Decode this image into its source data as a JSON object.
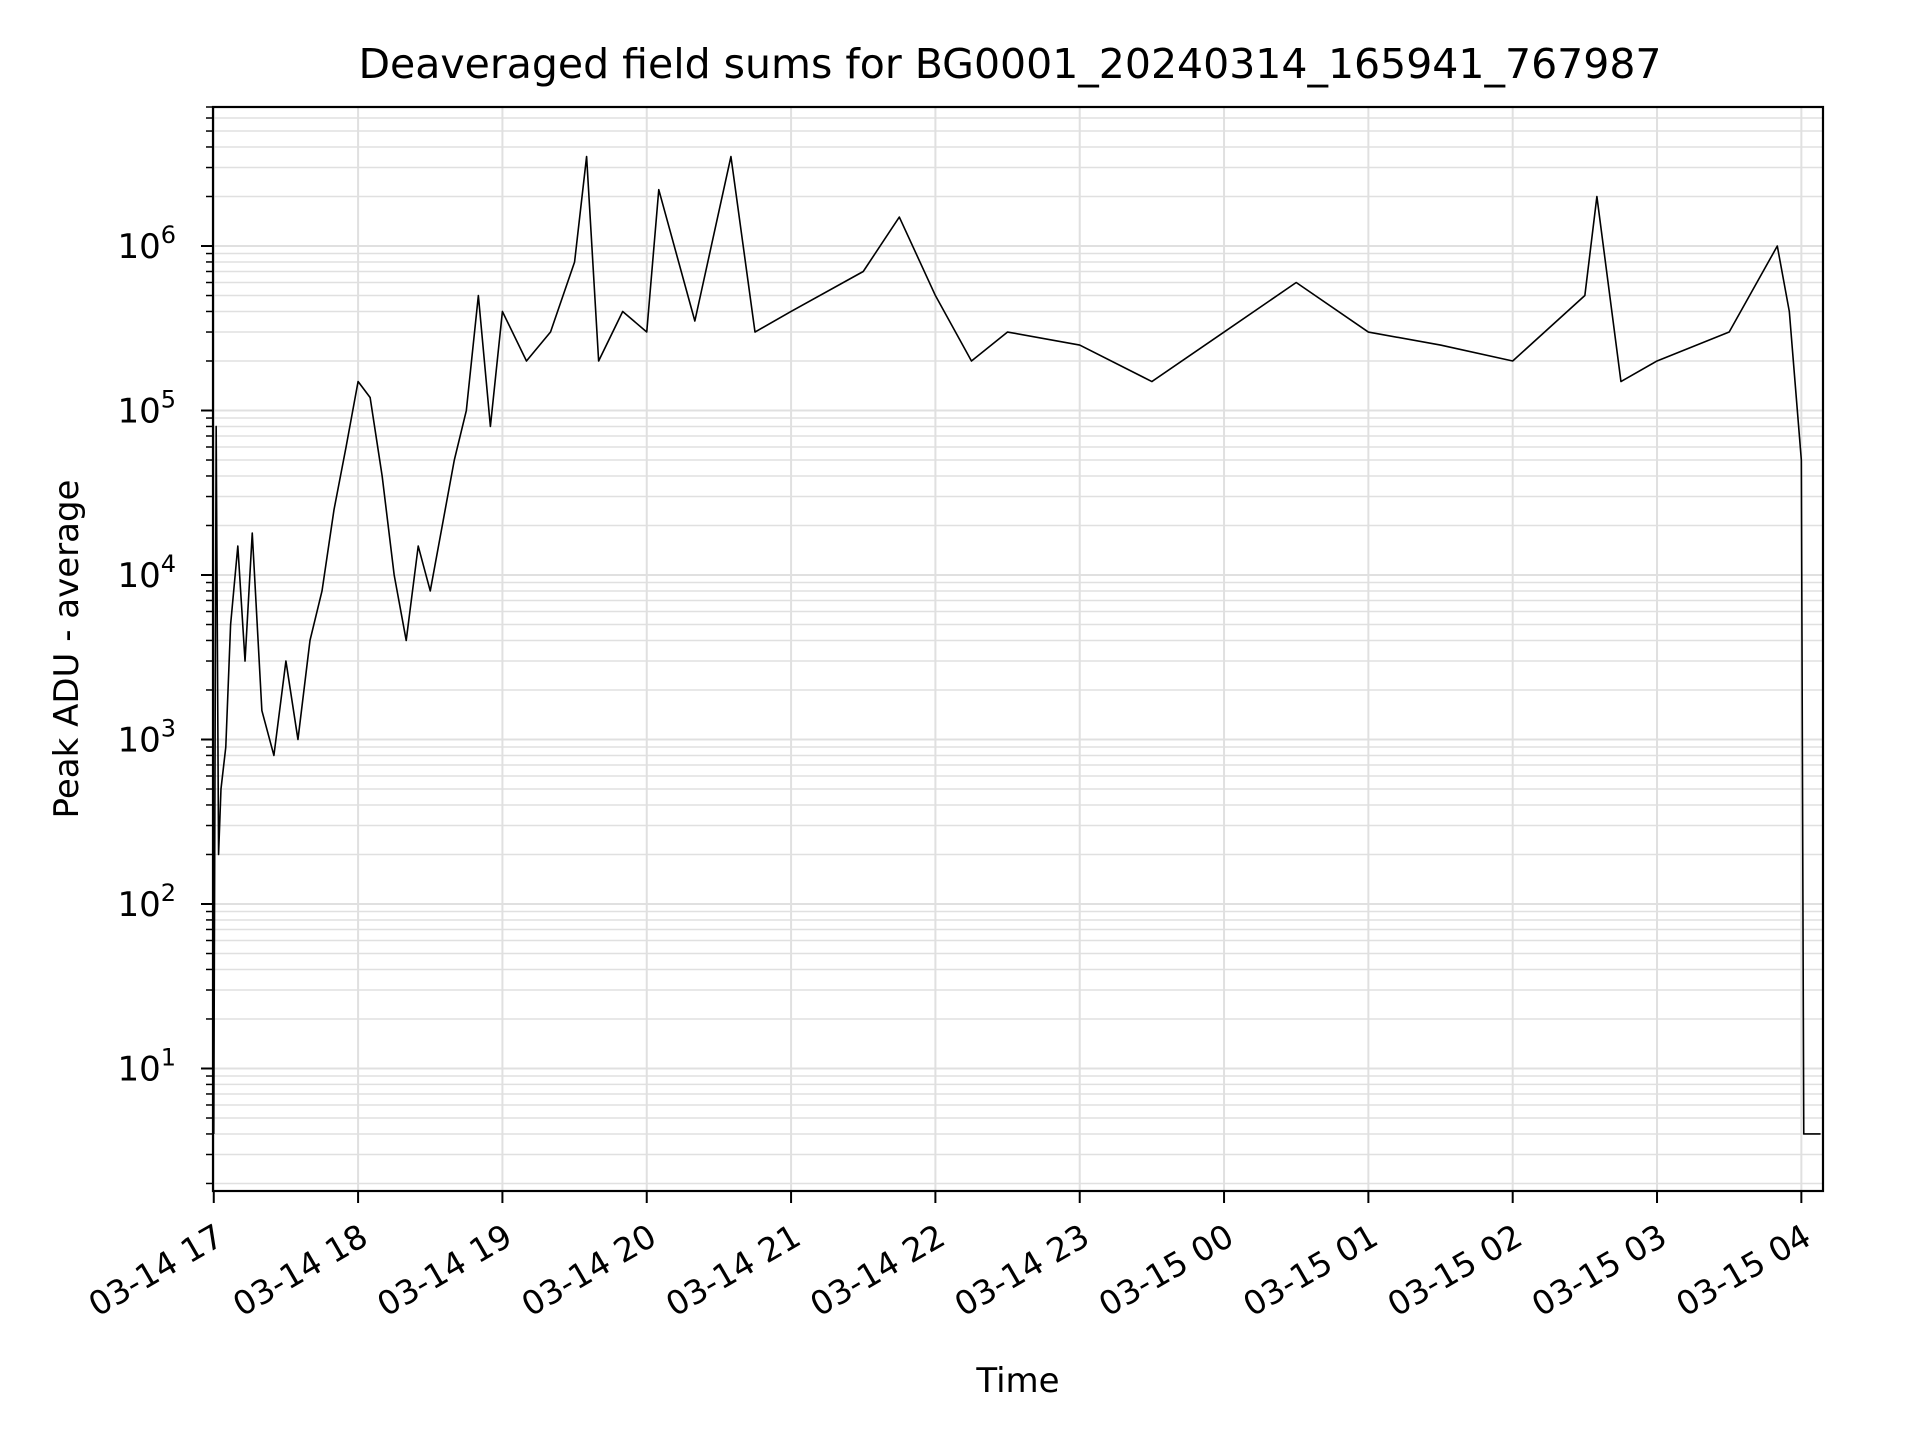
{
  "chart_data": {
    "type": "line",
    "title": "Deaveraged field sums for BG0001_20240314_165941_767987",
    "xlabel": "Time",
    "ylabel": "Peak ADU - average",
    "yscale": "log",
    "xlim": [
      "2024-03-14 16:59:41",
      "2024-03-15 04:09:00"
    ],
    "ylim": [
      1.8,
      7000000
    ],
    "grid": true,
    "line_color": "#000000",
    "grid_color": "#e0e0e0",
    "x_ticks": [
      {
        "label": "03-14 17",
        "value": "2024-03-14 17:00"
      },
      {
        "label": "03-14 18",
        "value": "2024-03-14 18:00"
      },
      {
        "label": "03-14 19",
        "value": "2024-03-14 19:00"
      },
      {
        "label": "03-14 20",
        "value": "2024-03-14 20:00"
      },
      {
        "label": "03-14 21",
        "value": "2024-03-14 21:00"
      },
      {
        "label": "03-14 22",
        "value": "2024-03-14 22:00"
      },
      {
        "label": "03-14 23",
        "value": "2024-03-14 23:00"
      },
      {
        "label": "03-15 00",
        "value": "2024-03-15 00:00"
      },
      {
        "label": "03-15 01",
        "value": "2024-03-15 01:00"
      },
      {
        "label": "03-15 02",
        "value": "2024-03-15 02:00"
      },
      {
        "label": "03-15 03",
        "value": "2024-03-15 03:00"
      },
      {
        "label": "03-15 04",
        "value": "2024-03-15 04:00"
      }
    ],
    "y_ticks": [
      {
        "base": "10",
        "exp": "1",
        "value": 10
      },
      {
        "base": "10",
        "exp": "2",
        "value": 100
      },
      {
        "base": "10",
        "exp": "3",
        "value": 1000
      },
      {
        "base": "10",
        "exp": "4",
        "value": 10000
      },
      {
        "base": "10",
        "exp": "5",
        "value": 100000
      },
      {
        "base": "10",
        "exp": "6",
        "value": 1000000
      }
    ],
    "series": [
      {
        "points": [
          [
            "2024-03-14 17:00",
            4
          ],
          [
            "2024-03-14 17:01",
            80000
          ],
          [
            "2024-03-14 17:02",
            200
          ],
          [
            "2024-03-14 17:03",
            500
          ],
          [
            "2024-03-14 17:05",
            900
          ],
          [
            "2024-03-14 17:07",
            5000
          ],
          [
            "2024-03-14 17:10",
            15000
          ],
          [
            "2024-03-14 17:13",
            3000
          ],
          [
            "2024-03-14 17:16",
            18000
          ],
          [
            "2024-03-14 17:20",
            1500
          ],
          [
            "2024-03-14 17:25",
            800
          ],
          [
            "2024-03-14 17:30",
            3000
          ],
          [
            "2024-03-14 17:35",
            1000
          ],
          [
            "2024-03-14 17:40",
            4000
          ],
          [
            "2024-03-14 17:45",
            8000
          ],
          [
            "2024-03-14 17:50",
            25000
          ],
          [
            "2024-03-14 17:55",
            60000
          ],
          [
            "2024-03-14 18:00",
            150000
          ],
          [
            "2024-03-14 18:05",
            120000
          ],
          [
            "2024-03-14 18:10",
            40000
          ],
          [
            "2024-03-14 18:15",
            10000
          ],
          [
            "2024-03-14 18:20",
            4000
          ],
          [
            "2024-03-14 18:25",
            15000
          ],
          [
            "2024-03-14 18:30",
            8000
          ],
          [
            "2024-03-14 18:35",
            20000
          ],
          [
            "2024-03-14 18:40",
            50000
          ],
          [
            "2024-03-14 18:45",
            100000
          ],
          [
            "2024-03-14 18:50",
            500000
          ],
          [
            "2024-03-14 18:55",
            80000
          ],
          [
            "2024-03-14 19:00",
            400000
          ],
          [
            "2024-03-14 19:10",
            200000
          ],
          [
            "2024-03-14 19:20",
            300000
          ],
          [
            "2024-03-14 19:30",
            800000
          ],
          [
            "2024-03-14 19:35",
            3500000
          ],
          [
            "2024-03-14 19:40",
            200000
          ],
          [
            "2024-03-14 19:50",
            400000
          ],
          [
            "2024-03-14 20:00",
            300000
          ],
          [
            "2024-03-14 20:05",
            2200000
          ],
          [
            "2024-03-14 20:20",
            350000
          ],
          [
            "2024-03-14 20:35",
            3500000
          ],
          [
            "2024-03-14 20:45",
            300000
          ],
          [
            "2024-03-14 21:00",
            400000
          ],
          [
            "2024-03-14 21:30",
            700000
          ],
          [
            "2024-03-14 21:45",
            1500000
          ],
          [
            "2024-03-14 22:00",
            500000
          ],
          [
            "2024-03-14 22:15",
            200000
          ],
          [
            "2024-03-14 22:30",
            300000
          ],
          [
            "2024-03-14 23:00",
            250000
          ],
          [
            "2024-03-14 23:30",
            150000
          ],
          [
            "2024-03-15 00:00",
            300000
          ],
          [
            "2024-03-15 00:30",
            600000
          ],
          [
            "2024-03-15 01:00",
            300000
          ],
          [
            "2024-03-15 01:30",
            250000
          ],
          [
            "2024-03-15 02:00",
            200000
          ],
          [
            "2024-03-15 02:30",
            500000
          ],
          [
            "2024-03-15 02:35",
            2000000
          ],
          [
            "2024-03-15 02:45",
            150000
          ],
          [
            "2024-03-15 03:00",
            200000
          ],
          [
            "2024-03-15 03:30",
            300000
          ],
          [
            "2024-03-15 03:50",
            1000000
          ],
          [
            "2024-03-15 03:55",
            400000
          ],
          [
            "2024-03-15 04:00",
            50000
          ],
          [
            "2024-03-15 04:01",
            4
          ],
          [
            "2024-03-15 04:08",
            4
          ]
        ]
      }
    ]
  }
}
